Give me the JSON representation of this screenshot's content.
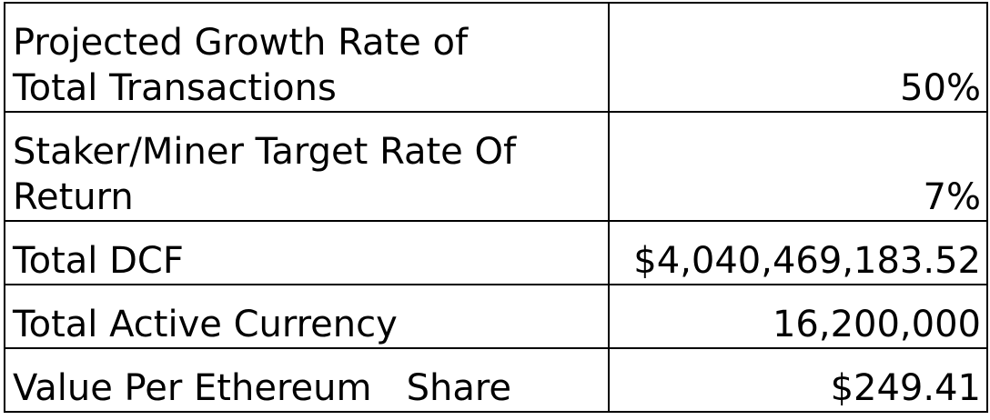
{
  "table": {
    "rows": [
      {
        "label": "Projected Growth Rate of\nTotal Transactions",
        "value": "50%"
      },
      {
        "label": "Staker/Miner Target Rate Of\nReturn",
        "value": "7%"
      },
      {
        "label": "Total DCF",
        "value": "$4,040,469,183.52"
      },
      {
        "label": "Total Active Currency",
        "value": "16,200,000"
      },
      {
        "label": "Value Per Ethereum   Share",
        "value": "$249.41"
      }
    ]
  }
}
